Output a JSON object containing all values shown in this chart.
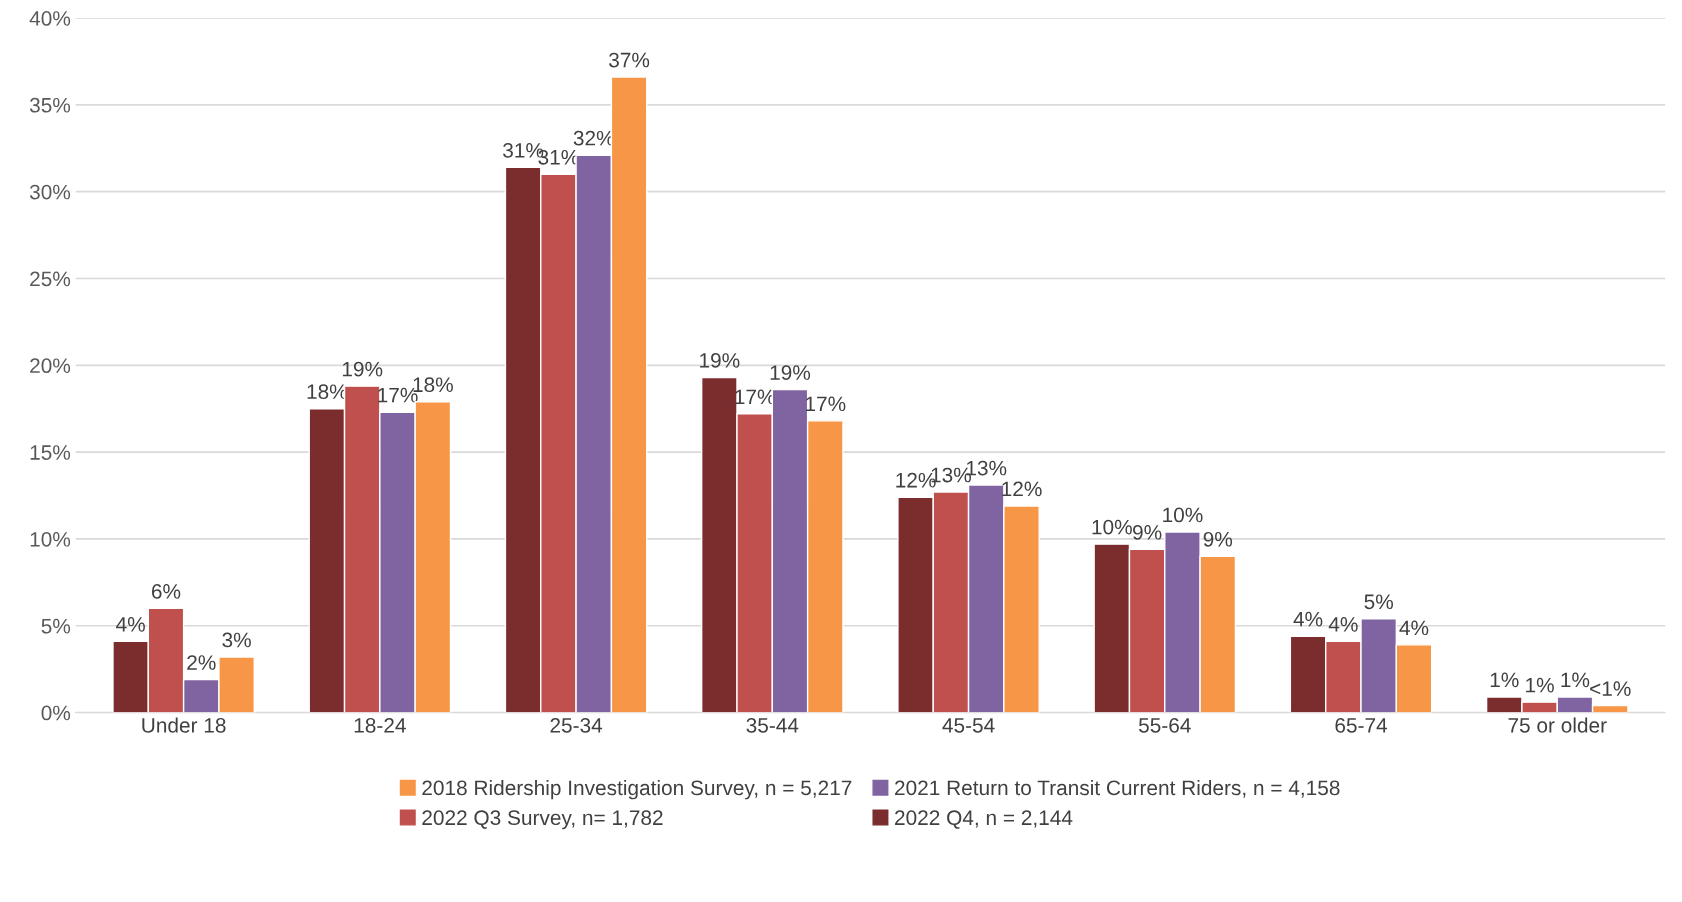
{
  "chart_data": {
    "type": "bar",
    "categories": [
      "Under 18",
      "18-24",
      "25-34",
      "35-44",
      "45-54",
      "55-64",
      "65-74",
      "75 or older"
    ],
    "series": [
      {
        "name": "2022 Q4, n = 2,144",
        "color": "#7b2c2c",
        "values": [
          4.1,
          17.5,
          31.4,
          19.3,
          12.4,
          9.7,
          4.4,
          0.9
        ],
        "value_labels": [
          "4%",
          "18%",
          "31%",
          "19%",
          "12%",
          "10%",
          "4%",
          "1%"
        ]
      },
      {
        "name": "2022 Q3 Survey, n= 1,782",
        "color": "#c0504d",
        "values": [
          6.0,
          18.8,
          31.0,
          17.2,
          12.7,
          9.4,
          4.1,
          0.6
        ],
        "value_labels": [
          "6%",
          "19%",
          "31%",
          "17%",
          "13%",
          "9%",
          "4%",
          "1%"
        ]
      },
      {
        "name": "2021 Return to Transit Current Riders, n = 4,158",
        "color": "#8064a2",
        "values": [
          1.9,
          17.3,
          32.1,
          18.6,
          13.1,
          10.4,
          5.4,
          0.9
        ],
        "value_labels": [
          "2%",
          "17%",
          "32%",
          "19%",
          "13%",
          "10%",
          "5%",
          "1%"
        ]
      },
      {
        "name": "2018 Ridership Investigation Survey, n = 5,217",
        "color": "#f79646",
        "values": [
          3.2,
          17.9,
          36.6,
          16.8,
          11.9,
          9.0,
          3.9,
          0.4
        ],
        "value_labels": [
          "3%",
          "18%",
          "37%",
          "17%",
          "12%",
          "9%",
          "4%",
          "<1%"
        ]
      }
    ],
    "ylim": [
      0,
      40
    ],
    "yticks": [
      {
        "value": 0,
        "label": "0%"
      },
      {
        "value": 5,
        "label": "5%"
      },
      {
        "value": 10,
        "label": "10%"
      },
      {
        "value": 15,
        "label": "15%"
      },
      {
        "value": 20,
        "label": "20%"
      },
      {
        "value": 25,
        "label": "25%"
      },
      {
        "value": 30,
        "label": "30%"
      },
      {
        "value": 35,
        "label": "35%"
      },
      {
        "value": 40,
        "label": "40%"
      }
    ],
    "grid": "y",
    "legend": "bottom"
  }
}
